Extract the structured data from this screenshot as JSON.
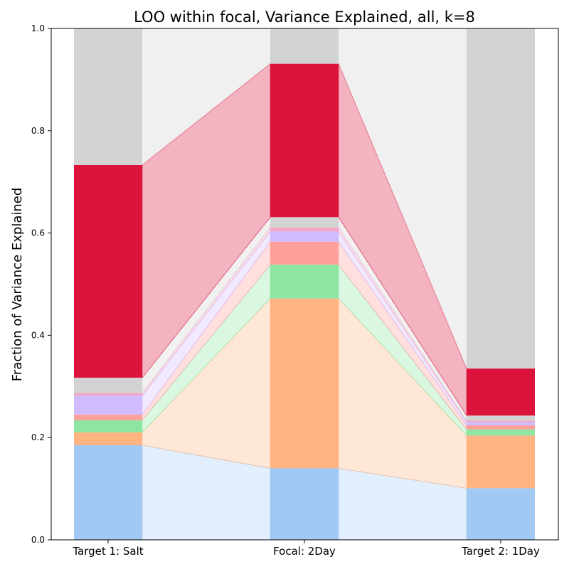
{
  "chart_data": {
    "type": "stacked-bar",
    "title": "LOO within focal, Variance Explained, all, k=8",
    "xlabel": "",
    "ylabel": "Fraction of Variance Explained",
    "ylim": [
      0,
      1.0
    ],
    "yticks": [
      "0.0",
      "0.2",
      "0.4",
      "0.6",
      "0.8",
      "1.0"
    ],
    "categories": [
      "Target 1: Salt",
      "Focal: 2Day",
      "Target 2: 1Day"
    ],
    "series": [
      {
        "color": "#a1c9f4",
        "values": [
          0.185,
          0.14,
          0.101
        ]
      },
      {
        "color": "#ffb482",
        "values": [
          0.025,
          0.332,
          0.103
        ]
      },
      {
        "color": "#8de5a1",
        "values": [
          0.024,
          0.066,
          0.012
        ]
      },
      {
        "color": "#ff9f9b",
        "values": [
          0.011,
          0.045,
          0.008
        ]
      },
      {
        "color": "#d0bbff",
        "values": [
          0.037,
          0.02,
          0.006
        ]
      },
      {
        "color": "#f1a6c6",
        "values": [
          0.005,
          0.008,
          0.003
        ]
      },
      {
        "color": "#d3d3d3",
        "values": [
          0.03,
          0.02,
          0.01
        ]
      },
      {
        "color": "#dc143c",
        "values": [
          0.416,
          0.3,
          0.092
        ]
      }
    ],
    "remainder_color": "#d3d3d3",
    "grid": false
  }
}
